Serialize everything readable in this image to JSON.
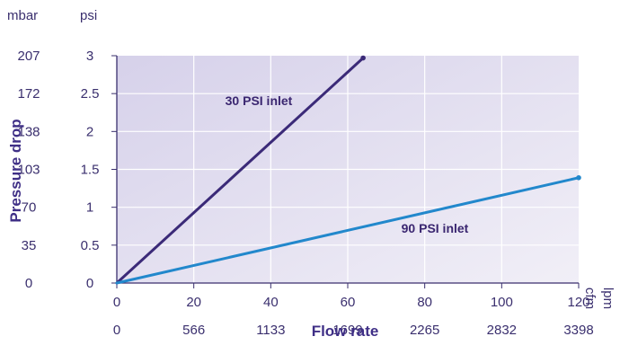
{
  "chart_data": {
    "type": "line",
    "title": "",
    "ylabel": "Pressure drop",
    "xlabel": "Flow rate",
    "y_units": {
      "primary": "psi",
      "secondary": "mbar"
    },
    "x_units": {
      "primary": "cfm",
      "secondary": "lpm"
    },
    "ylim": [
      0,
      3
    ],
    "xlim": [
      0,
      120
    ],
    "y_ticks": [
      {
        "psi": "0",
        "mbar": "0"
      },
      {
        "psi": "0.5",
        "mbar": "35"
      },
      {
        "psi": "1",
        "mbar": "70"
      },
      {
        "psi": "1.5",
        "mbar": "103"
      },
      {
        "psi": "2",
        "mbar": "138"
      },
      {
        "psi": "2.5",
        "mbar": "172"
      },
      {
        "psi": "3",
        "mbar": "207"
      }
    ],
    "x_ticks": [
      {
        "cfm": "0",
        "lpm": "0"
      },
      {
        "cfm": "20",
        "lpm": "566"
      },
      {
        "cfm": "40",
        "lpm": "1133"
      },
      {
        "cfm": "60",
        "lpm": "1699"
      },
      {
        "cfm": "80",
        "lpm": "2265"
      },
      {
        "cfm": "100",
        "lpm": "2832"
      },
      {
        "cfm": "120",
        "lpm": "3398"
      }
    ],
    "series": [
      {
        "name": "30 PSI inlet",
        "color": "#3b2a78",
        "points": [
          [
            0,
            0
          ],
          [
            64,
            2.97
          ]
        ]
      },
      {
        "name": "90 PSI inlet",
        "color": "#2288cc",
        "points": [
          [
            0,
            0
          ],
          [
            120,
            1.39
          ]
        ]
      }
    ],
    "grid": true,
    "plot_background": "#e6e2f0",
    "grid_color": "#ffffff"
  }
}
